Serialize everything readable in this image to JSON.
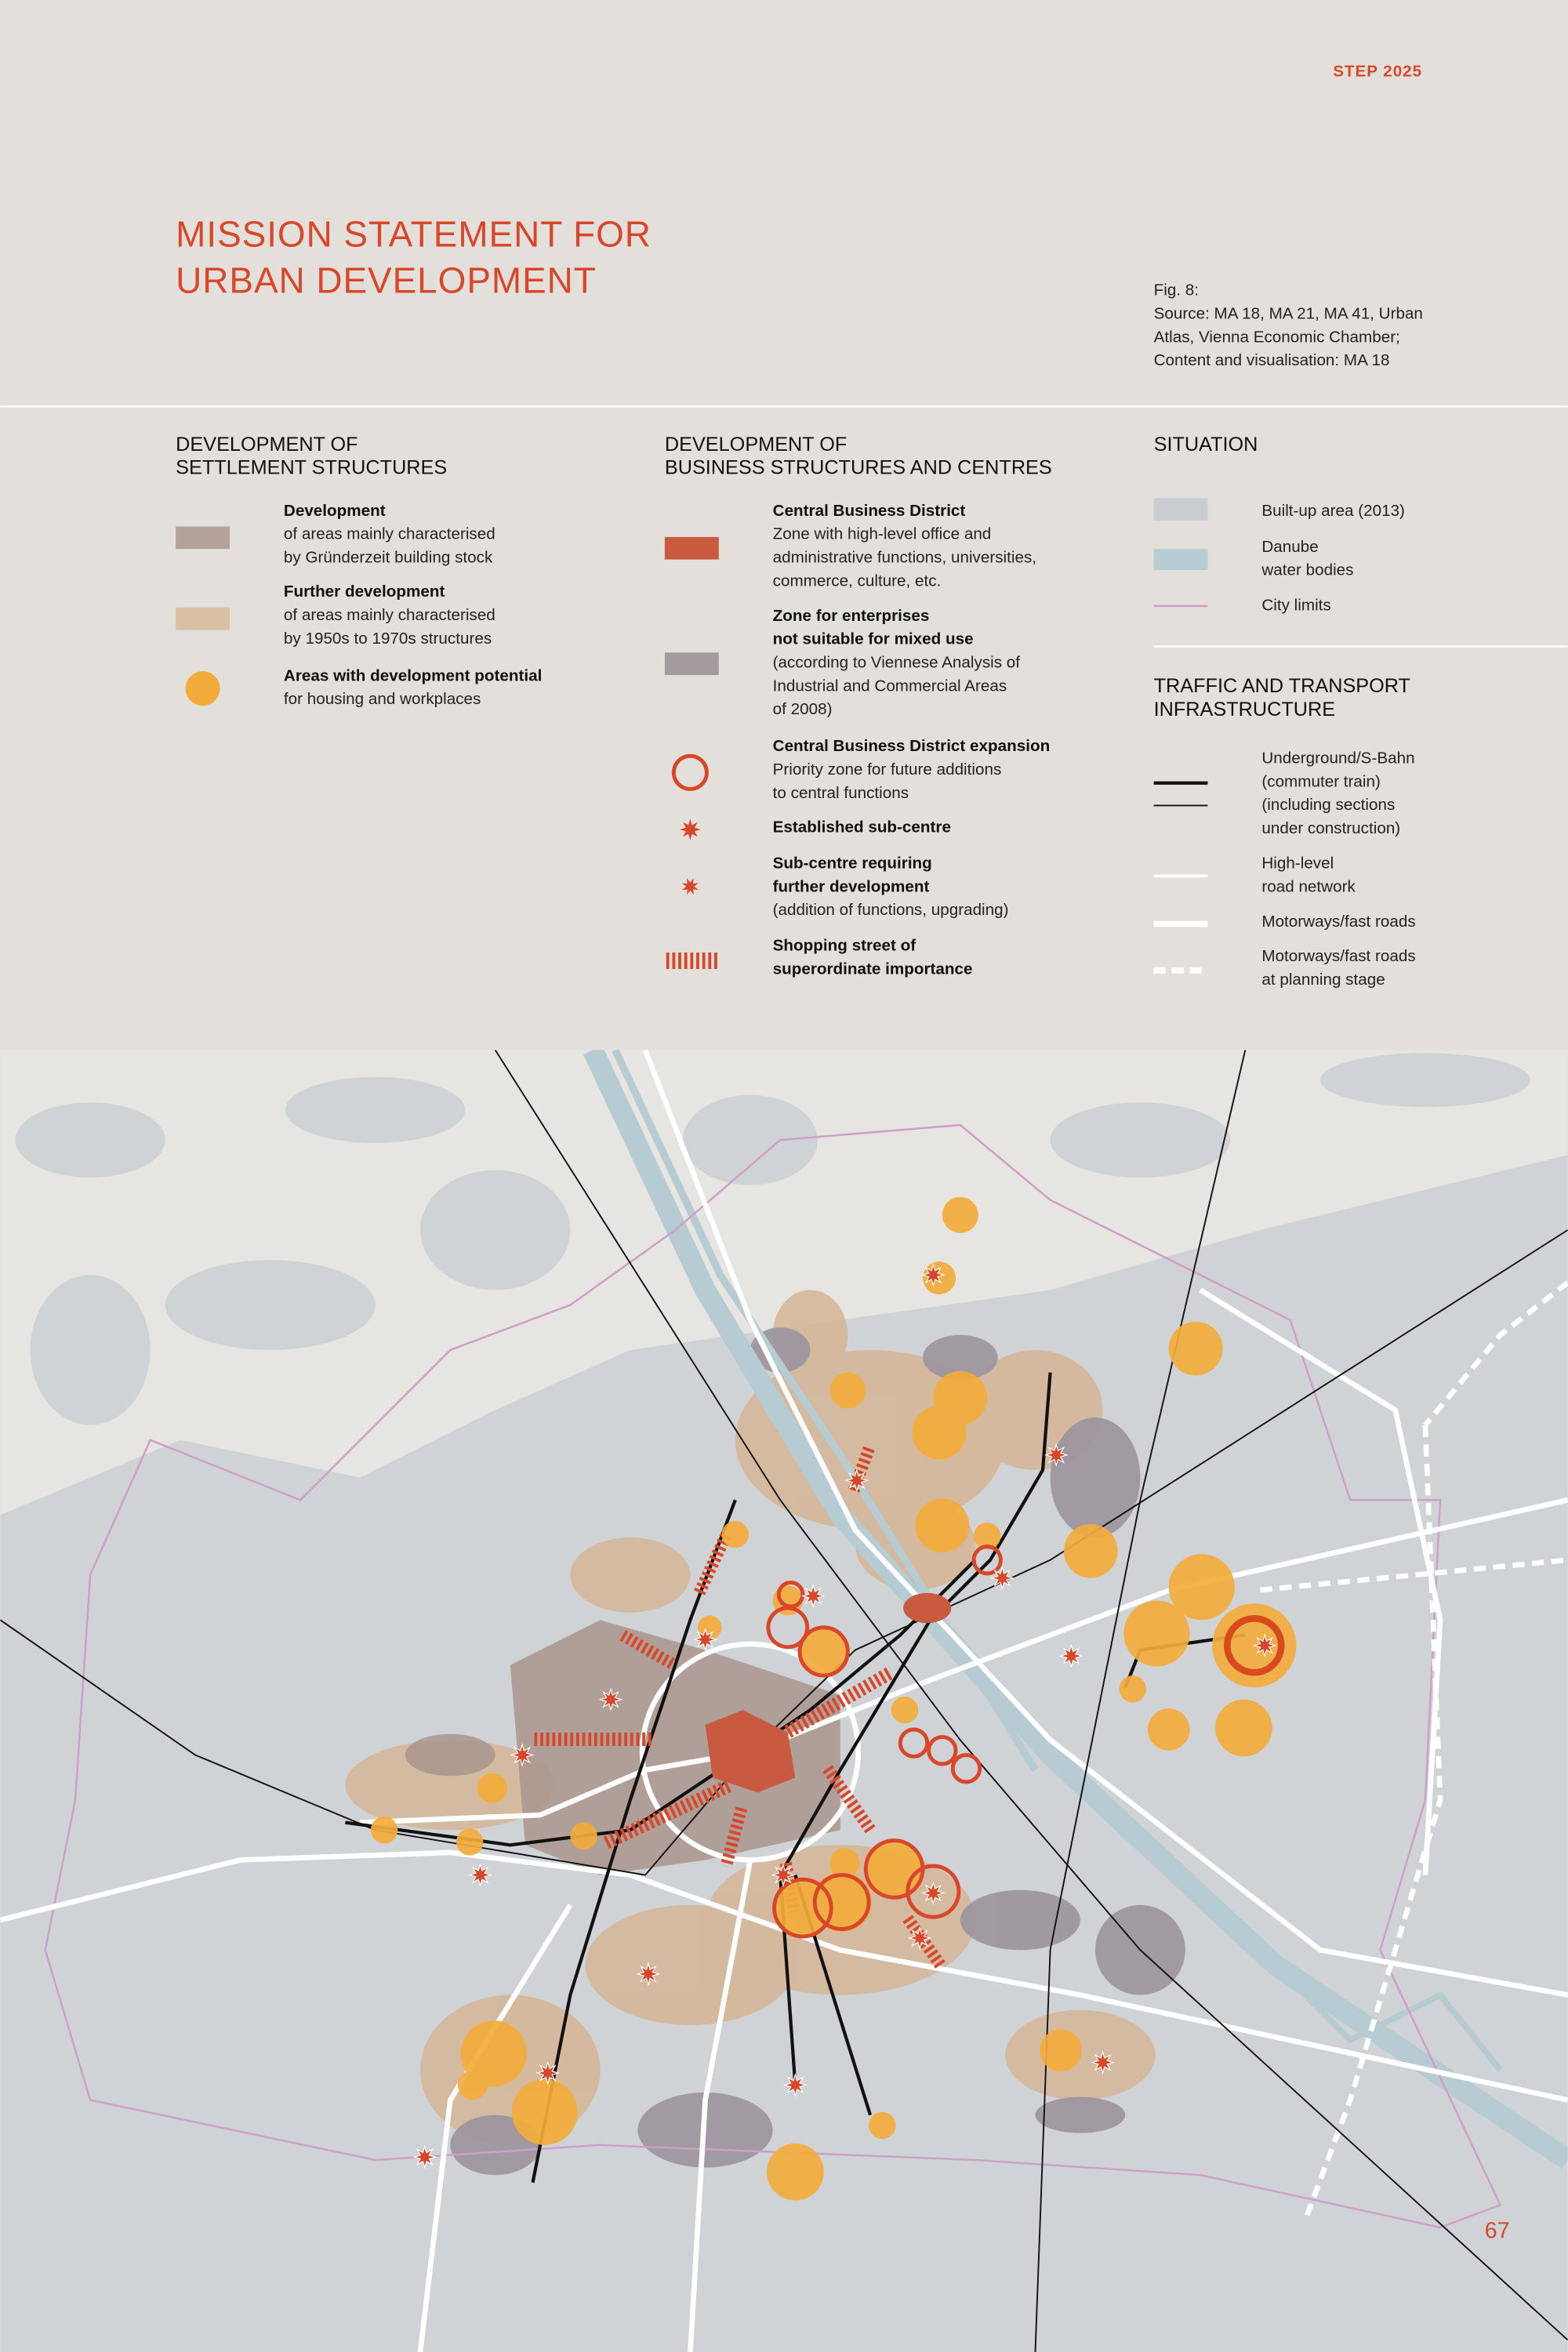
{
  "header": {
    "tag": "STEP 2025",
    "title": [
      "MISSION STATEMENT FOR",
      "URBAN DEVELOPMENT"
    ],
    "figure": [
      "Fig. 8:",
      "Source: MA 18, MA 21, MA 41, Urban",
      "Atlas, Vienna Economic Chamber;",
      "Content and visualisation: MA 18"
    ]
  },
  "legend": [
    {
      "heading": [
        "DEVELOPMENT OF",
        "SETTLEMENT STRUCTURES"
      ],
      "items": [
        {
          "title": [
            "Development"
          ],
          "lines": [
            "of areas mainly characterised",
            "by Gründerzeit building stock"
          ]
        },
        {
          "title": [
            "Further development"
          ],
          "lines": [
            "of areas mainly characterised",
            "by 1950s to 1970s structures"
          ]
        },
        {
          "title": [
            "Areas with development potential"
          ],
          "lines": [
            "for housing and workplaces"
          ]
        }
      ]
    },
    {
      "heading": [
        "DEVELOPMENT OF",
        "BUSINESS STRUCTURES AND CENTRES"
      ],
      "items": [
        {
          "title": [
            "Central Business District"
          ],
          "lines": [
            "Zone with high-level office and",
            "administrative functions, universities,",
            "commerce, culture, etc."
          ]
        },
        {
          "title": [
            "Zone for enterprises",
            "not suitable for mixed use"
          ],
          "lines": [
            "(according to Viennese Analysis of",
            "Industrial and Commercial Areas",
            "of 2008)"
          ]
        },
        {
          "title": [
            "Central Business District expansion"
          ],
          "lines": [
            "Priority zone for future additions",
            "to central functions"
          ]
        },
        {
          "title": [
            "Established sub-centre"
          ],
          "lines": []
        },
        {
          "title": [
            "Sub-centre requiring",
            "further development"
          ],
          "lines": [
            "(addition of functions, upgrading)"
          ]
        },
        {
          "title": [
            "Shopping street of",
            "superordinate importance"
          ],
          "lines": []
        }
      ]
    },
    {
      "heading": [
        "SITUATION"
      ],
      "items": [
        {
          "title": [],
          "lines": [
            "Built-up area (2013)"
          ]
        },
        {
          "title": [],
          "lines": [
            "Danube",
            "water bodies"
          ]
        },
        {
          "title": [],
          "lines": [
            "City limits"
          ]
        }
      ]
    },
    {
      "heading": [
        "TRAFFIC AND TRANSPORT",
        "INFRASTRUCTURE"
      ],
      "items": [
        {
          "title": [],
          "lines": [
            "Underground/S-Bahn",
            "(commuter train)",
            "(including sections",
            "under construction)"
          ]
        },
        {
          "title": [],
          "lines": [
            "High-level",
            "road network"
          ]
        },
        {
          "title": [],
          "lines": [
            "Motorways/fast roads"
          ]
        },
        {
          "title": [],
          "lines": [
            "Motorways/fast roads",
            "at planning stage"
          ]
        }
      ]
    }
  ],
  "page_number": "67"
}
